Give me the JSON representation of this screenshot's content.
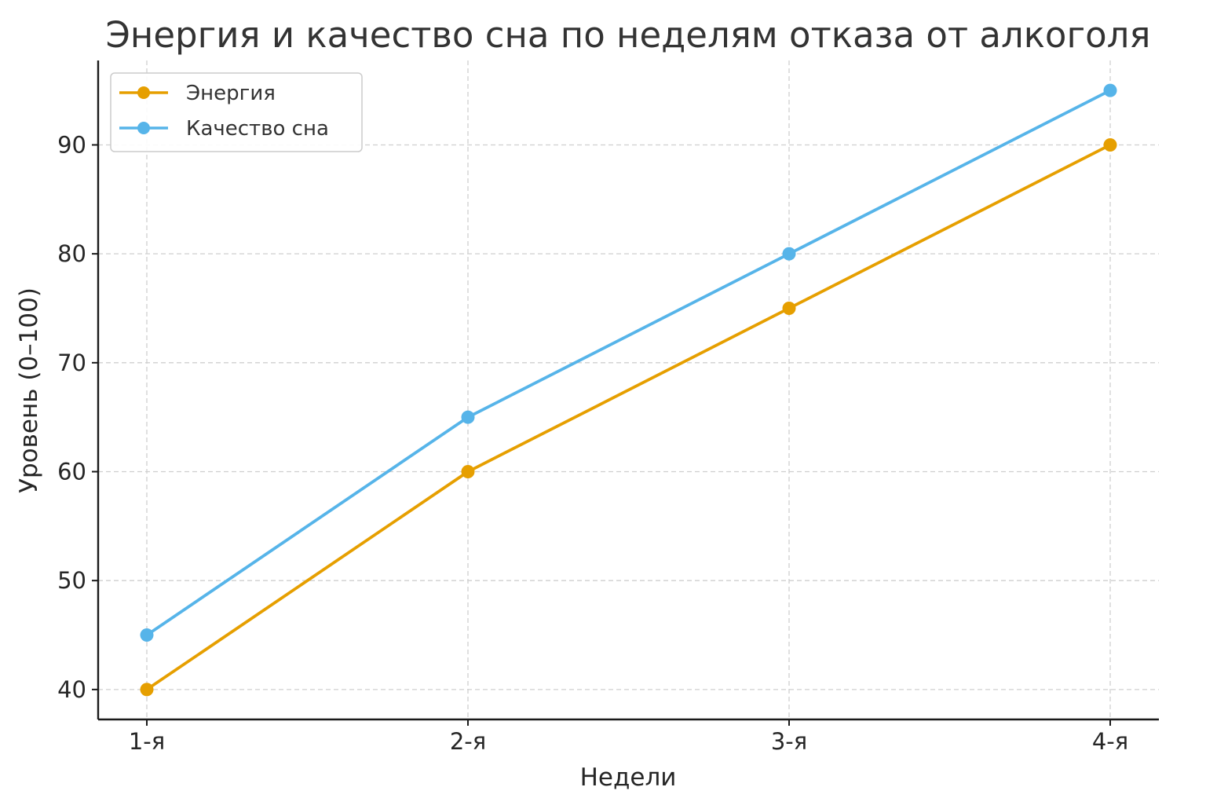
{
  "chart_data": {
    "type": "line",
    "title": "Энергия и качество сна по неделям отказа от алкоголя",
    "xlabel": "Недели",
    "ylabel": "Уровень (0–100)",
    "categories": [
      "1-я",
      "2-я",
      "3-я",
      "4-я"
    ],
    "ylim": [
      37.25,
      97.75
    ],
    "yticks": [
      40,
      50,
      60,
      70,
      80,
      90
    ],
    "grid": true,
    "legend_position": "top-left",
    "series": [
      {
        "name": "Энергия",
        "color": "#E69F00",
        "values": [
          40,
          60,
          75,
          90
        ]
      },
      {
        "name": "Качество сна",
        "color": "#56B4E9",
        "values": [
          45,
          65,
          80,
          95
        ]
      }
    ]
  }
}
